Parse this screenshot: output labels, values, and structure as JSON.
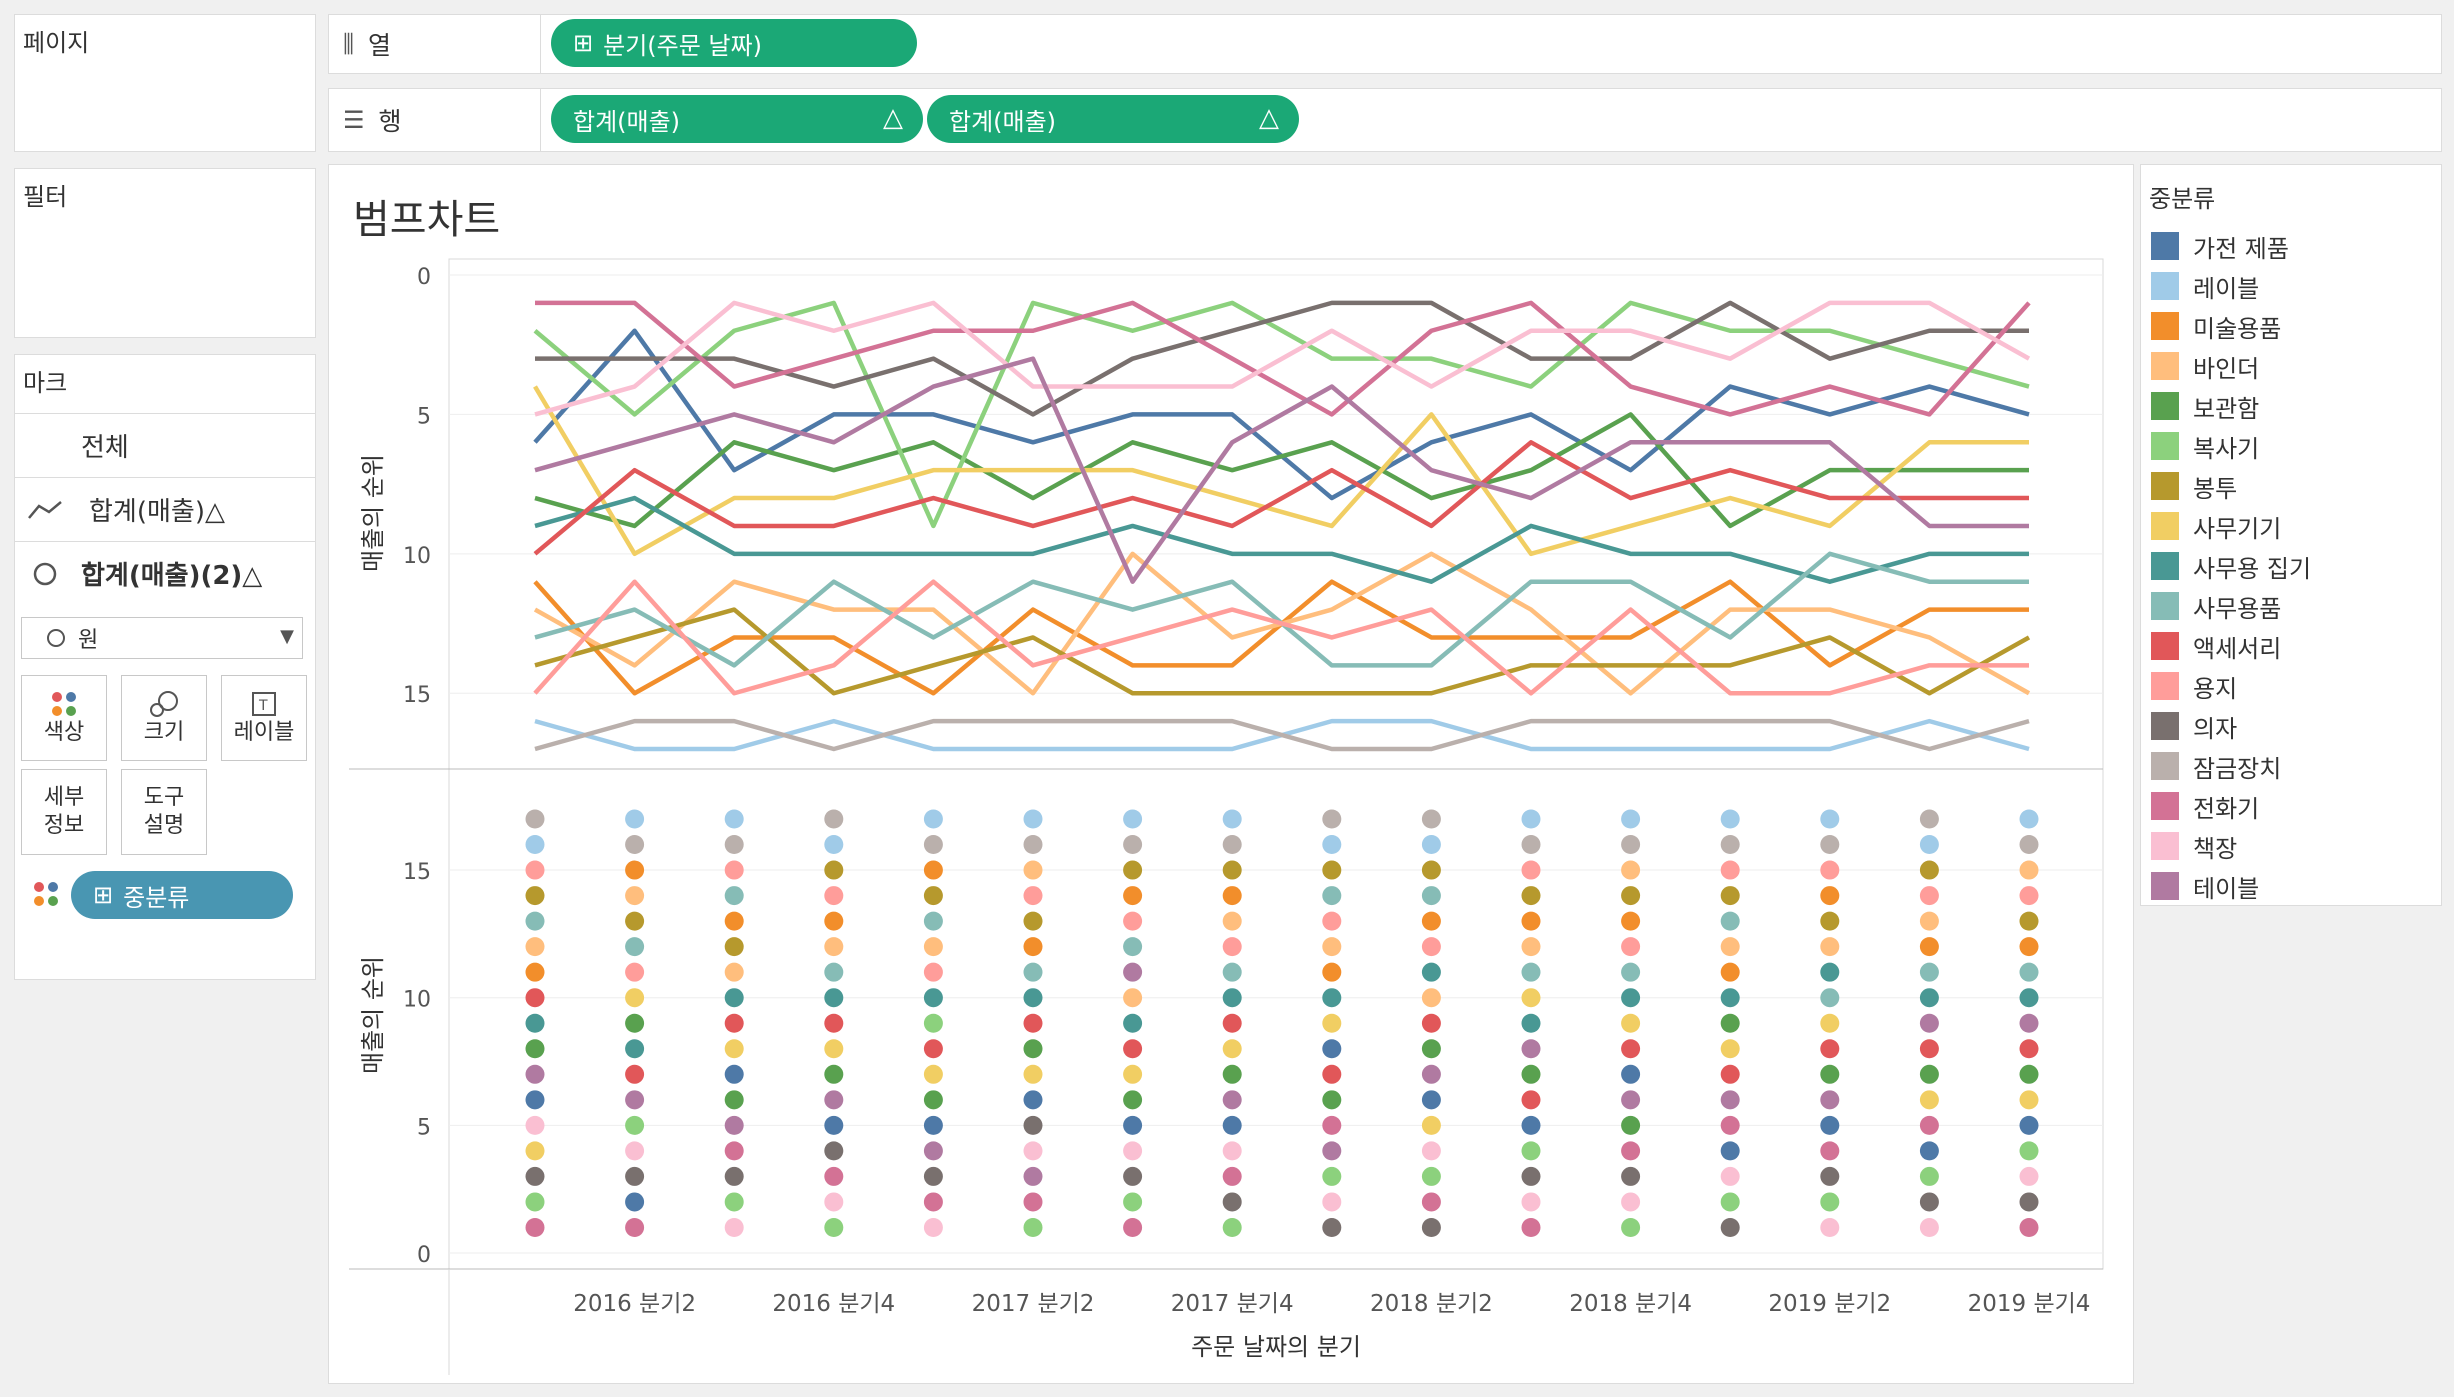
{
  "left": {
    "pages_title": "페이지",
    "filters_title": "필터",
    "marks_title": "마크",
    "marks_all": "전체",
    "marks_line": "합계(매출)△",
    "marks_circle": "합계(매출)(2)△",
    "mark_type": "원",
    "buttons": [
      "색상",
      "크기",
      "레이블",
      "세부\n정보",
      "도구\n설명"
    ],
    "color_pill": "중분류"
  },
  "shelves": {
    "columns_label": "열",
    "rows_label": "행",
    "column_pill": "분기(주문 날짜)",
    "row_pill_1": "합계(매출)",
    "row_pill_2": "합계(매출)",
    "delta": "△"
  },
  "view": {
    "title": "범프차트"
  },
  "legend": {
    "title": "중분류",
    "items": [
      {
        "name": "가전 제품",
        "color": "#4e79a7"
      },
      {
        "name": "레이블",
        "color": "#a0cbe8"
      },
      {
        "name": "미술용품",
        "color": "#f28e2b"
      },
      {
        "name": "바인더",
        "color": "#ffbe7d"
      },
      {
        "name": "보관함",
        "color": "#59a14f"
      },
      {
        "name": "복사기",
        "color": "#8cd17d"
      },
      {
        "name": "봉투",
        "color": "#b6992d"
      },
      {
        "name": "사무기기",
        "color": "#f1ce63"
      },
      {
        "name": "사무용 집기",
        "color": "#499894"
      },
      {
        "name": "사무용품",
        "color": "#86bcb6"
      },
      {
        "name": "액세서리",
        "color": "#e15759"
      },
      {
        "name": "용지",
        "color": "#ff9d9a"
      },
      {
        "name": "의자",
        "color": "#79706e"
      },
      {
        "name": "잠금장치",
        "color": "#bab0ac"
      },
      {
        "name": "전화기",
        "color": "#d37295"
      },
      {
        "name": "책장",
        "color": "#fabfd2"
      },
      {
        "name": "테이블",
        "color": "#b07aa1"
      }
    ]
  },
  "chart_data": [
    {
      "type": "line",
      "ylabel": "매출의 순위",
      "y_reversed": true,
      "ylim": [
        0,
        17
      ],
      "yticks": [
        0,
        5,
        10,
        15
      ],
      "x": [
        "2016 분기1",
        "2016 분기2",
        "2016 분기3",
        "2016 분기4",
        "2017 분기1",
        "2017 분기2",
        "2017 분기3",
        "2017 분기4",
        "2018 분기1",
        "2018 분기2",
        "2018 분기3",
        "2018 분기4",
        "2019 분기1",
        "2019 분기2",
        "2019 분기3",
        "2019 분기4"
      ],
      "series": [
        {
          "name": "가전 제품",
          "values": [
            6,
            2,
            7,
            5,
            5,
            6,
            5,
            5,
            8,
            6,
            5,
            7,
            4,
            5,
            4,
            5
          ]
        },
        {
          "name": "레이블",
          "values": [
            16,
            17,
            17,
            16,
            17,
            17,
            17,
            17,
            16,
            16,
            17,
            17,
            17,
            17,
            16,
            17
          ]
        },
        {
          "name": "미술용품",
          "values": [
            11,
            15,
            13,
            13,
            15,
            12,
            14,
            14,
            11,
            13,
            13,
            13,
            11,
            14,
            12,
            12
          ]
        },
        {
          "name": "바인더",
          "values": [
            12,
            14,
            11,
            12,
            12,
            15,
            10,
            13,
            12,
            10,
            12,
            15,
            12,
            12,
            13,
            15
          ]
        },
        {
          "name": "보관함",
          "values": [
            8,
            9,
            6,
            7,
            6,
            8,
            6,
            7,
            6,
            8,
            7,
            5,
            9,
            7,
            7,
            7
          ]
        },
        {
          "name": "복사기",
          "values": [
            2,
            5,
            2,
            1,
            9,
            1,
            2,
            1,
            3,
            3,
            4,
            1,
            2,
            2,
            3,
            4
          ]
        },
        {
          "name": "봉투",
          "values": [
            14,
            13,
            12,
            15,
            14,
            13,
            15,
            15,
            15,
            15,
            14,
            14,
            14,
            13,
            15,
            13
          ]
        },
        {
          "name": "사무기기",
          "values": [
            4,
            10,
            8,
            8,
            7,
            7,
            7,
            8,
            9,
            5,
            10,
            9,
            8,
            9,
            6,
            6
          ]
        },
        {
          "name": "사무용 집기",
          "values": [
            9,
            8,
            10,
            10,
            10,
            10,
            9,
            10,
            10,
            11,
            9,
            10,
            10,
            11,
            10,
            10
          ]
        },
        {
          "name": "사무용품",
          "values": [
            13,
            12,
            14,
            11,
            13,
            11,
            12,
            11,
            14,
            14,
            11,
            11,
            13,
            10,
            11,
            11
          ]
        },
        {
          "name": "액세서리",
          "values": [
            10,
            7,
            9,
            9,
            8,
            9,
            8,
            9,
            7,
            9,
            6,
            8,
            7,
            8,
            8,
            8
          ]
        },
        {
          "name": "용지",
          "values": [
            15,
            11,
            15,
            14,
            11,
            14,
            13,
            12,
            13,
            12,
            15,
            12,
            15,
            15,
            14,
            14
          ]
        },
        {
          "name": "의자",
          "values": [
            3,
            3,
            3,
            4,
            3,
            5,
            3,
            2,
            1,
            1,
            3,
            3,
            1,
            3,
            2,
            2
          ]
        },
        {
          "name": "잠금장치",
          "values": [
            17,
            16,
            16,
            17,
            16,
            16,
            16,
            16,
            17,
            17,
            16,
            16,
            16,
            16,
            17,
            16
          ]
        },
        {
          "name": "전화기",
          "values": [
            1,
            1,
            4,
            3,
            2,
            2,
            1,
            3,
            5,
            2,
            1,
            4,
            5,
            4,
            5,
            1
          ]
        },
        {
          "name": "책장",
          "values": [
            5,
            4,
            1,
            2,
            1,
            4,
            4,
            4,
            2,
            4,
            2,
            2,
            3,
            1,
            1,
            3
          ]
        },
        {
          "name": "테이블",
          "values": [
            7,
            6,
            5,
            6,
            4,
            3,
            11,
            6,
            4,
            7,
            8,
            6,
            6,
            6,
            9,
            9
          ]
        }
      ]
    },
    {
      "type": "scatter",
      "ylabel": "매출의 순위",
      "ylim": [
        0,
        17
      ],
      "yticks": [
        0,
        5,
        10,
        15
      ],
      "note": "same rank values as line chart, plotted on non-reversed axis"
    }
  ],
  "xaxis": {
    "ticks": [
      "2016 분기2",
      "2016 분기4",
      "2017 분기2",
      "2017 분기4",
      "2018 분기2",
      "2018 분기4",
      "2019 분기2",
      "2019 분기4"
    ],
    "title": "주문 날짜의 분기"
  }
}
